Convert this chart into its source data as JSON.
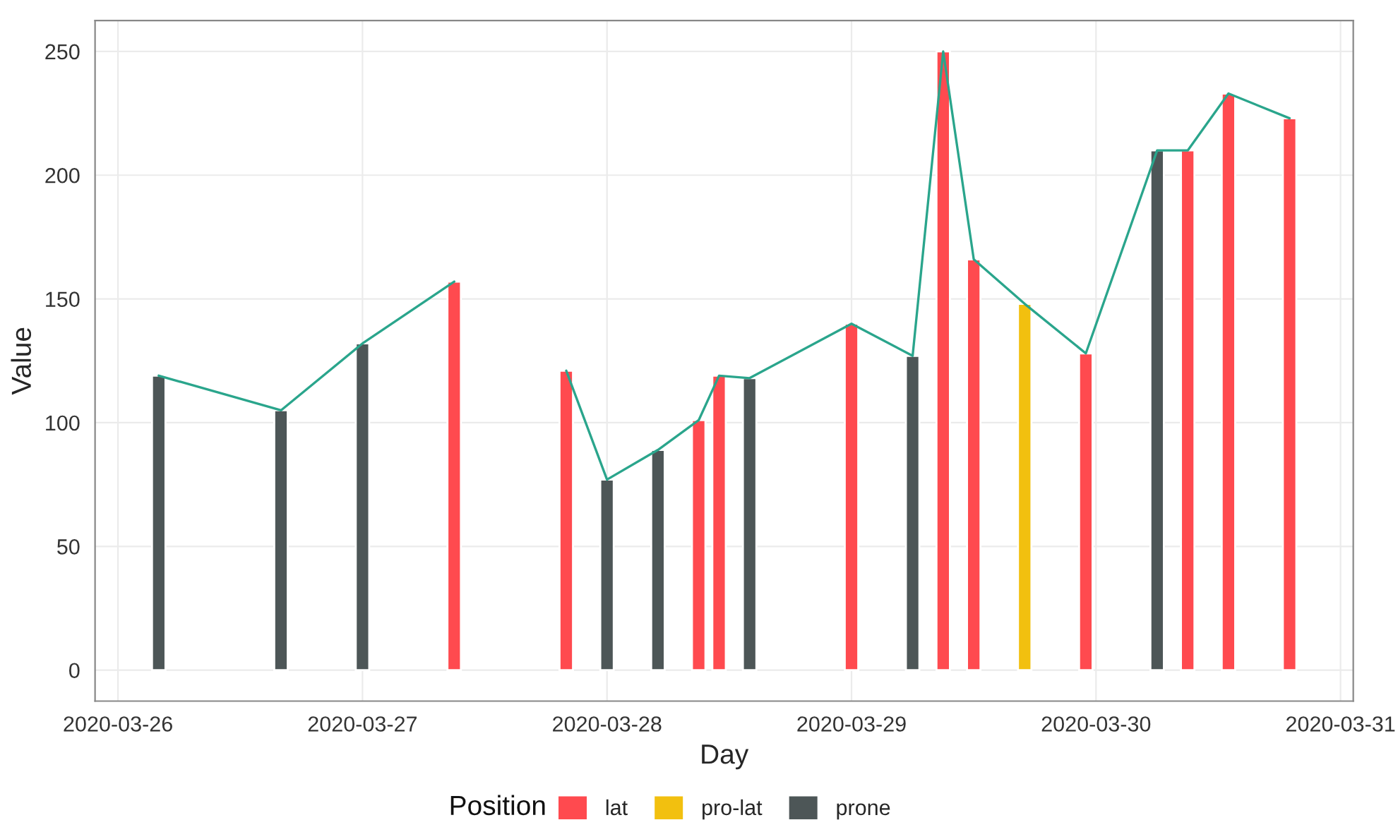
{
  "chart_data": {
    "type": "bar",
    "xlabel": "Day",
    "ylabel": "Value",
    "legend_title": "Position",
    "series": [
      {
        "type": "line",
        "color": "#2aa58c",
        "x": [
          "2020-03-26T04:00",
          "2020-03-26T16:00",
          "2020-03-27T00:00",
          "2020-03-27T09:00"
        ],
        "values": [
          119,
          105,
          132,
          157
        ]
      },
      {
        "type": "line",
        "color": "#2aa58c",
        "x": [
          "2020-03-27T20:00",
          "2020-03-28T00:00",
          "2020-03-28T05:00",
          "2020-03-28T09:00",
          "2020-03-28T11:00",
          "2020-03-28T14:00",
          "2020-03-29T00:00",
          "2020-03-29T06:00",
          "2020-03-29T09:00",
          "2020-03-29T12:00",
          "2020-03-29T17:00",
          "2020-03-29T23:00",
          "2020-03-30T06:00",
          "2020-03-30T09:00",
          "2020-03-30T13:00",
          "2020-03-30T19:00"
        ],
        "values": [
          121,
          77,
          89,
          101,
          119,
          118,
          140,
          127,
          250,
          166,
          148,
          128,
          210,
          210,
          233,
          223
        ]
      },
      {
        "name": "lat",
        "color": "#ff4a4f",
        "x": [
          "2020-03-27T09:00",
          "2020-03-27T20:00",
          "2020-03-28T09:00",
          "2020-03-28T11:00",
          "2020-03-29T00:00",
          "2020-03-29T09:00",
          "2020-03-29T12:00",
          "2020-03-29T23:00",
          "2020-03-30T09:00",
          "2020-03-30T13:00",
          "2020-03-30T19:00"
        ],
        "values": [
          157,
          121,
          101,
          119,
          140,
          250,
          166,
          128,
          210,
          233,
          223
        ]
      },
      {
        "name": "pro-lat",
        "color": "#f2c00f",
        "x": [
          "2020-03-29T17:00"
        ],
        "values": [
          148
        ]
      },
      {
        "name": "prone",
        "color": "#4d5657",
        "x": [
          "2020-03-26T04:00",
          "2020-03-26T16:00",
          "2020-03-27T00:00",
          "2020-03-28T00:00",
          "2020-03-28T05:00",
          "2020-03-28T14:00",
          "2020-03-29T06:00",
          "2020-03-30T06:00"
        ],
        "values": [
          119,
          105,
          132,
          77,
          89,
          118,
          127,
          210
        ]
      }
    ],
    "xlim": [
      "2020-03-25T21:45",
      "2020-03-31T01:15"
    ],
    "xticks": [
      "2020-03-26",
      "2020-03-27",
      "2020-03-28",
      "2020-03-29",
      "2020-03-30",
      "2020-03-31"
    ],
    "ylim": [
      -12.5,
      262.5
    ],
    "yticks": [
      0,
      50,
      100,
      150,
      200,
      250
    ],
    "grid": true,
    "legend": "bottom"
  }
}
